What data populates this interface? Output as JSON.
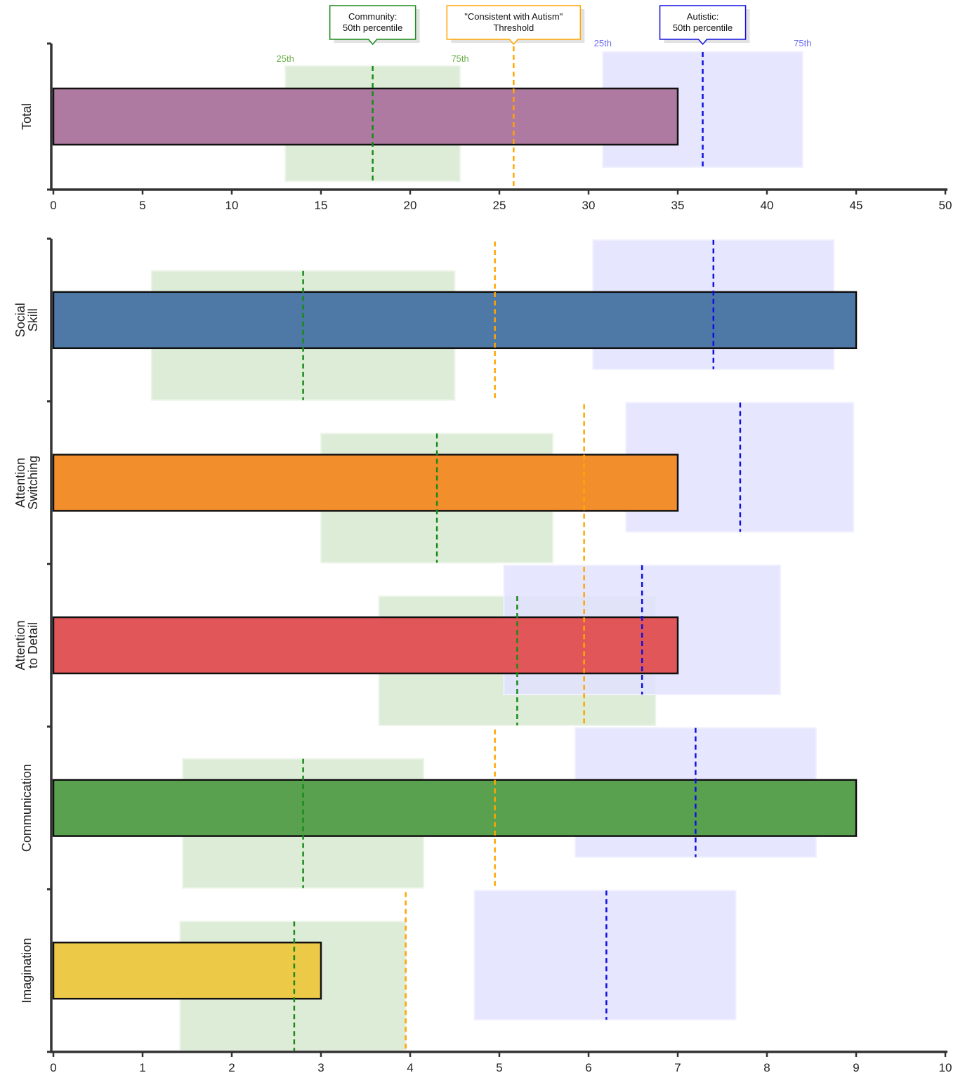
{
  "chart_data": [
    {
      "type": "bar",
      "orientation": "horizontal",
      "categories": [
        "Total"
      ],
      "values": [
        35
      ],
      "xlim": [
        0,
        50
      ],
      "xticks": [
        0,
        5,
        10,
        15,
        20,
        25,
        30,
        35,
        40,
        45,
        50
      ],
      "community_iqr": [
        [
          13,
          22.8
        ]
      ],
      "community_median": [
        17.9
      ],
      "autistic_iqr": [
        [
          30.8,
          42
        ]
      ],
      "autistic_median": [
        36.4
      ],
      "threshold": [
        25.8
      ],
      "colors": [
        "#ae7aa1"
      ],
      "percentile_labels": {
        "low": "25th",
        "high": "75th"
      },
      "callouts": {
        "community": [
          "Community:",
          "50th percentile"
        ],
        "threshold": [
          "\"Consistent with Autism\"",
          "Threshold"
        ],
        "autistic": [
          "Autistic:",
          "50th percentile"
        ]
      }
    },
    {
      "type": "bar",
      "orientation": "horizontal",
      "categories": [
        [
          "Social",
          "Skill"
        ],
        [
          "Attention",
          "Switching"
        ],
        [
          "Attention",
          "to Detail"
        ],
        [
          "Communication"
        ],
        [
          "Imagination"
        ]
      ],
      "values": [
        9,
        7,
        7,
        9,
        3
      ],
      "xlim": [
        0,
        10
      ],
      "xticks": [
        0,
        1,
        2,
        3,
        4,
        5,
        6,
        7,
        8,
        9,
        10
      ],
      "community_iqr": [
        [
          1.1,
          4.5
        ],
        [
          3.0,
          5.6
        ],
        [
          3.65,
          6.75
        ],
        [
          1.45,
          4.15
        ],
        [
          1.42,
          3.95
        ]
      ],
      "community_median": [
        2.8,
        4.3,
        5.2,
        2.8,
        2.7
      ],
      "autistic_iqr": [
        [
          6.05,
          8.75
        ],
        [
          6.42,
          8.97
        ],
        [
          5.05,
          8.15
        ],
        [
          5.85,
          8.55
        ],
        [
          4.72,
          7.65
        ]
      ],
      "autistic_median": [
        7.4,
        7.7,
        6.6,
        7.2,
        6.2
      ],
      "threshold": [
        4.95,
        5.95,
        5.95,
        4.95,
        3.95
      ],
      "colors": [
        "#4e79a7",
        "#f28e2b",
        "#e15759",
        "#59a14f",
        "#edc948"
      ]
    }
  ],
  "style": {
    "community_fill": "#d9ead3",
    "community_line": "#1a8a1a",
    "community_label": "#6ab04c",
    "autistic_fill": "#e2e2ff",
    "autistic_line": "#1010dd",
    "autistic_label": "#6a6af0",
    "threshold_line": "#ffa500",
    "axis": "#333333"
  }
}
